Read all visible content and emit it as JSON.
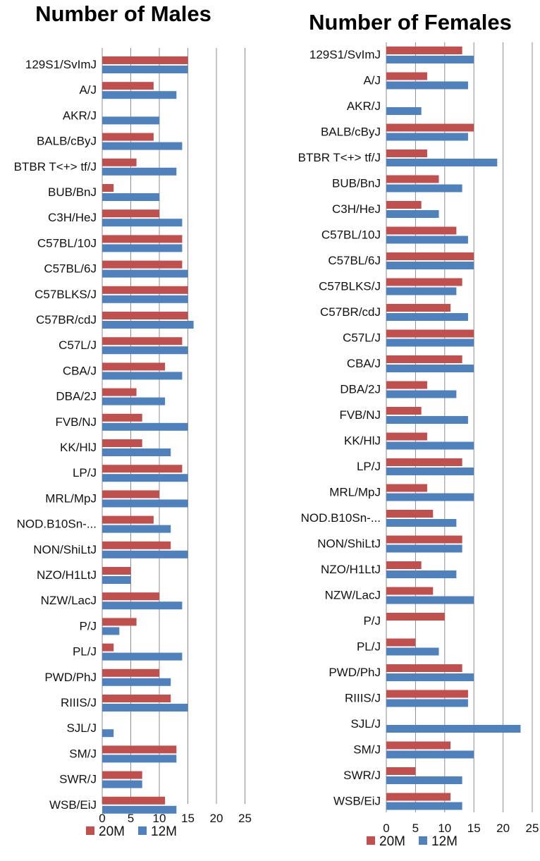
{
  "chart_data": [
    {
      "type": "bar",
      "orientation": "horizontal",
      "title": "Number of Males",
      "categories": [
        "129S1/SvImJ",
        "A/J",
        "AKR/J",
        "BALB/cByJ",
        "BTBR T<+> tf/J",
        "BUB/BnJ",
        "C3H/HeJ",
        "C57BL/10J",
        "C57BL/6J",
        "C57BLKS/J",
        "C57BR/cdJ",
        "C57L/J",
        "CBA/J",
        "DBA/2J",
        "FVB/NJ",
        "KK/HlJ",
        "LP/J",
        "MRL/MpJ",
        "NOD.B10Sn-...",
        "NON/ShiLtJ",
        "NZO/H1LtJ",
        "NZW/LacJ",
        "P/J",
        "PL/J",
        "PWD/PhJ",
        "RIIIS/J",
        "SJL/J",
        "SM/J",
        "SWR/J",
        "WSB/EiJ"
      ],
      "series": [
        {
          "name": "20M",
          "values": [
            15,
            9,
            0,
            9,
            6,
            2,
            10,
            14,
            14,
            15,
            15,
            14,
            11,
            6,
            7,
            7,
            14,
            10,
            9,
            12,
            5,
            10,
            6,
            2,
            10,
            12,
            0,
            13,
            7,
            11
          ]
        },
        {
          "name": "12M",
          "values": [
            15,
            13,
            10,
            14,
            13,
            10,
            14,
            14,
            15,
            15,
            16,
            15,
            14,
            11,
            15,
            12,
            15,
            15,
            12,
            15,
            5,
            14,
            3,
            14,
            12,
            15,
            2,
            13,
            7,
            13
          ]
        }
      ],
      "xlim": [
        0,
        25
      ],
      "xticks": [
        "0",
        "5",
        "10",
        "15",
        "20",
        "25"
      ],
      "grid": true,
      "legend": "bottom",
      "colors": {
        "20M": "#c0504d",
        "12M": "#4f81bd"
      }
    },
    {
      "type": "bar",
      "orientation": "horizontal",
      "title": "Number of Females",
      "categories": [
        "129S1/SvImJ",
        "A/J",
        "AKR/J",
        "BALB/cByJ",
        "BTBR T<+> tf/J",
        "BUB/BnJ",
        "C3H/HeJ",
        "C57BL/10J",
        "C57BL/6J",
        "C57BLKS/J",
        "C57BR/cdJ",
        "C57L/J",
        "CBA/J",
        "DBA/2J",
        "FVB/NJ",
        "KK/HlJ",
        "LP/J",
        "MRL/MpJ",
        "NOD.B10Sn-...",
        "NON/ShiLtJ",
        "NZO/H1LtJ",
        "NZW/LacJ",
        "P/J",
        "PL/J",
        "PWD/PhJ",
        "RIIIS/J",
        "SJL/J",
        "SM/J",
        "SWR/J",
        "WSB/EiJ"
      ],
      "series": [
        {
          "name": "20M",
          "values": [
            13,
            7,
            0,
            15,
            7,
            9,
            6,
            12,
            15,
            13,
            11,
            15,
            13,
            7,
            6,
            7,
            13,
            7,
            8,
            13,
            6,
            8,
            10,
            5,
            13,
            14,
            0,
            11,
            5,
            11
          ]
        },
        {
          "name": "12M",
          "values": [
            15,
            14,
            6,
            14,
            19,
            13,
            9,
            14,
            15,
            12,
            14,
            15,
            15,
            12,
            14,
            15,
            15,
            15,
            12,
            13,
            12,
            15,
            0,
            9,
            15,
            14,
            23,
            15,
            13,
            13
          ]
        }
      ],
      "xlim": [
        0,
        25
      ],
      "xticks": [
        "0",
        "5",
        "10",
        "15",
        "20",
        "25"
      ],
      "grid": true,
      "legend": "bottom",
      "colors": {
        "20M": "#c0504d",
        "12M": "#4f81bd"
      }
    }
  ]
}
